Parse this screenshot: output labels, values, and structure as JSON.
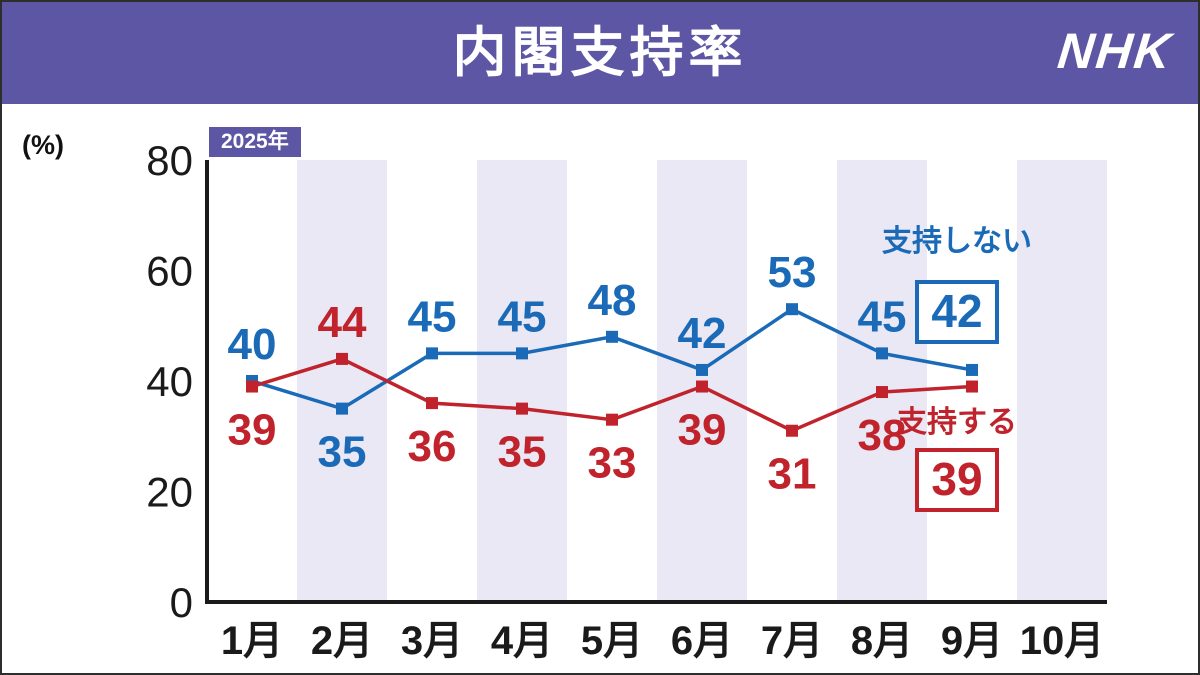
{
  "header": {
    "title": "内閣支持率",
    "logo": "NHK"
  },
  "chart": {
    "percent_label": "(%)",
    "year_label": "2025年",
    "y_ticks": [
      80,
      60,
      40,
      20,
      0
    ],
    "x_labels": [
      "1月",
      "2月",
      "3月",
      "4月",
      "5月",
      "6月",
      "7月",
      "8月",
      "9月",
      "10月"
    ]
  },
  "chart_data": {
    "type": "line",
    "title": "内閣支持率",
    "x": [
      "1月",
      "2月",
      "3月",
      "4月",
      "5月",
      "6月",
      "7月",
      "8月",
      "9月"
    ],
    "ylim": [
      0,
      80
    ],
    "ylabel": "%",
    "grid": "alternating-month-stripes",
    "legend_position": "right-inline-boxes",
    "series": [
      {
        "name": "支持しない",
        "color": "#1a6ab8",
        "values": [
          40,
          35,
          45,
          45,
          48,
          42,
          53,
          45,
          42
        ],
        "final_value": 42,
        "label_positions": [
          "above",
          "below",
          "above",
          "above",
          "above",
          "above",
          "above",
          "above",
          "box"
        ]
      },
      {
        "name": "支持する",
        "color": "#c0232b",
        "values": [
          39,
          44,
          36,
          35,
          33,
          39,
          31,
          38,
          39
        ],
        "final_value": 39,
        "label_positions": [
          "below",
          "above",
          "below",
          "below",
          "below",
          "below",
          "below",
          "below",
          "box"
        ]
      }
    ]
  },
  "colors": {
    "header_purple": "#5d56a4",
    "stripe": "#e9e8f4",
    "axis": "#1a1a1a",
    "disapprove_blue": "#1a6ab8",
    "approve_red": "#c0232b"
  }
}
